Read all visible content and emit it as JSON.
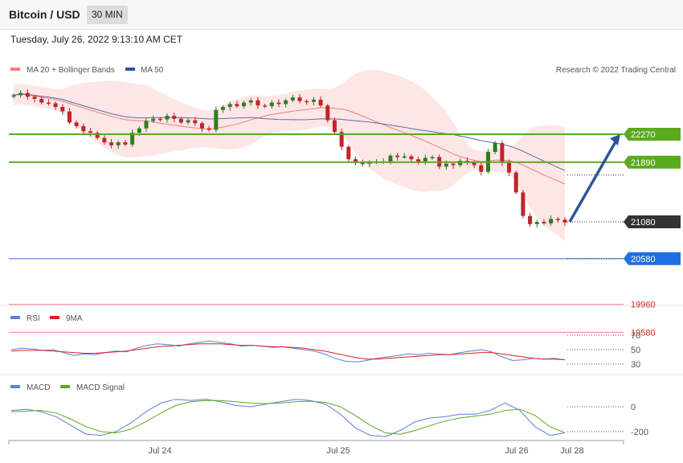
{
  "header": {
    "title": "Bitcoin / USD",
    "timeframe": "30 MIN"
  },
  "datetime": "Tuesday, July 26, 2022 9:13:10 AM CET",
  "legend_main": [
    {
      "label": "MA 20 + Bollinger Bands",
      "color": "#f08080"
    },
    {
      "label": "MA 50",
      "color": "#2f5597"
    }
  ],
  "credit": "Research © 2022 Trading Central",
  "levels": [
    {
      "value": 22270,
      "label": "22270",
      "style": "resistance",
      "color": "#5aaa1e"
    },
    {
      "value": 21890,
      "label": "21890",
      "style": "resistance",
      "color": "#5aaa1e"
    },
    {
      "value": 21080,
      "label": "21080",
      "style": "last",
      "color": "#333333"
    },
    {
      "value": 20580,
      "label": "20580",
      "style": "pivot",
      "color": "#1f6fe0"
    },
    {
      "value": 19960,
      "label": "19960",
      "style": "support",
      "color": "#e02020"
    },
    {
      "value": 19580,
      "label": "19580",
      "style": "support",
      "color": "#e02020"
    }
  ],
  "x_labels": [
    "Jul 24",
    "Jul 25",
    "Jul 26",
    "Jul 28"
  ],
  "rsi_legend": [
    {
      "label": "RSI",
      "color": "#5b7fdc"
    },
    {
      "label": "9MA",
      "color": "#e02020"
    }
  ],
  "rsi_levels": [
    "70",
    "50",
    "30"
  ],
  "macd_legend": [
    {
      "label": "MACD",
      "color": "#5b7fdc"
    },
    {
      "label": "MACD Signal",
      "color": "#5aaa1e"
    }
  ],
  "macd_levels": [
    "0",
    "-200"
  ],
  "chart_data": [
    {
      "type": "candlestick",
      "title": "Bitcoin / USD",
      "ylim": [
        19500,
        23600
      ],
      "x_labels": [
        "Jul 24",
        "Jul 25",
        "Jul 26",
        "Jul 28"
      ],
      "close_approx": [
        22800,
        22830,
        22780,
        22750,
        22700,
        22690,
        22640,
        22580,
        22430,
        22380,
        22310,
        22290,
        22220,
        22160,
        22120,
        22160,
        22130,
        22290,
        22350,
        22450,
        22480,
        22470,
        22520,
        22480,
        22430,
        22460,
        22420,
        22350,
        22330,
        22600,
        22640,
        22680,
        22650,
        22700,
        22730,
        22660,
        22650,
        22700,
        22680,
        22730,
        22770,
        22720,
        22710,
        22740,
        22660,
        22460,
        22300,
        22100,
        21930,
        21880,
        21870,
        21890,
        21900,
        21900,
        21980,
        21960,
        21970,
        21930,
        21900,
        21950,
        21960,
        21830,
        21870,
        21850,
        21910,
        21890,
        21850,
        21760,
        22030,
        22150,
        21880,
        21750,
        21480,
        21160,
        21050,
        21080,
        21060,
        21120,
        21110,
        21070
      ],
      "indicators": [
        "MA 20",
        "Bollinger Bands",
        "MA 50"
      ],
      "projection": {
        "from": 21080,
        "to": 22270
      }
    },
    {
      "type": "line",
      "series": [
        {
          "name": "RSI",
          "values": [
            50,
            52,
            51,
            49,
            50,
            46,
            42,
            44,
            43,
            46,
            48,
            47,
            52,
            56,
            58,
            57,
            55,
            58,
            60,
            62,
            60,
            58,
            55,
            56,
            55,
            53,
            54,
            52,
            50,
            48,
            44,
            38,
            34,
            33,
            35,
            38,
            40,
            42,
            44,
            43,
            45,
            44,
            43,
            46,
            48,
            50,
            47,
            40,
            35,
            36,
            38,
            37,
            38,
            36
          ]
        },
        {
          "name": "9MA",
          "values": [
            48,
            49,
            49,
            49,
            48,
            47,
            46,
            45,
            45,
            46,
            47,
            48,
            50,
            52,
            54,
            55,
            56,
            57,
            58,
            58,
            58,
            57,
            56,
            56,
            55,
            54,
            54,
            53,
            52,
            50,
            48,
            45,
            42,
            39,
            37,
            37,
            38,
            39,
            40,
            41,
            42,
            43,
            43,
            44,
            45,
            46,
            46,
            44,
            42,
            40,
            38,
            37,
            37,
            36
          ]
        }
      ],
      "levels": [
        70,
        50,
        30
      ]
    },
    {
      "type": "line",
      "series": [
        {
          "name": "MACD",
          "values": [
            -30,
            -20,
            -40,
            -80,
            -150,
            -220,
            -230,
            -200,
            -130,
            -40,
            30,
            60,
            50,
            60,
            40,
            10,
            0,
            20,
            40,
            60,
            50,
            20,
            -60,
            -170,
            -230,
            -240,
            -190,
            -120,
            -90,
            -80,
            -60,
            -60,
            -30,
            30,
            -30,
            -160,
            -230,
            -210
          ]
        },
        {
          "name": "MACD Signal",
          "values": [
            -40,
            -35,
            -30,
            -50,
            -100,
            -160,
            -200,
            -210,
            -180,
            -120,
            -50,
            10,
            40,
            50,
            50,
            40,
            30,
            25,
            30,
            40,
            45,
            35,
            0,
            -70,
            -150,
            -210,
            -220,
            -190,
            -150,
            -115,
            -90,
            -75,
            -60,
            -30,
            -20,
            -70,
            -160,
            -210
          ]
        }
      ],
      "levels": [
        0,
        -200
      ]
    }
  ]
}
